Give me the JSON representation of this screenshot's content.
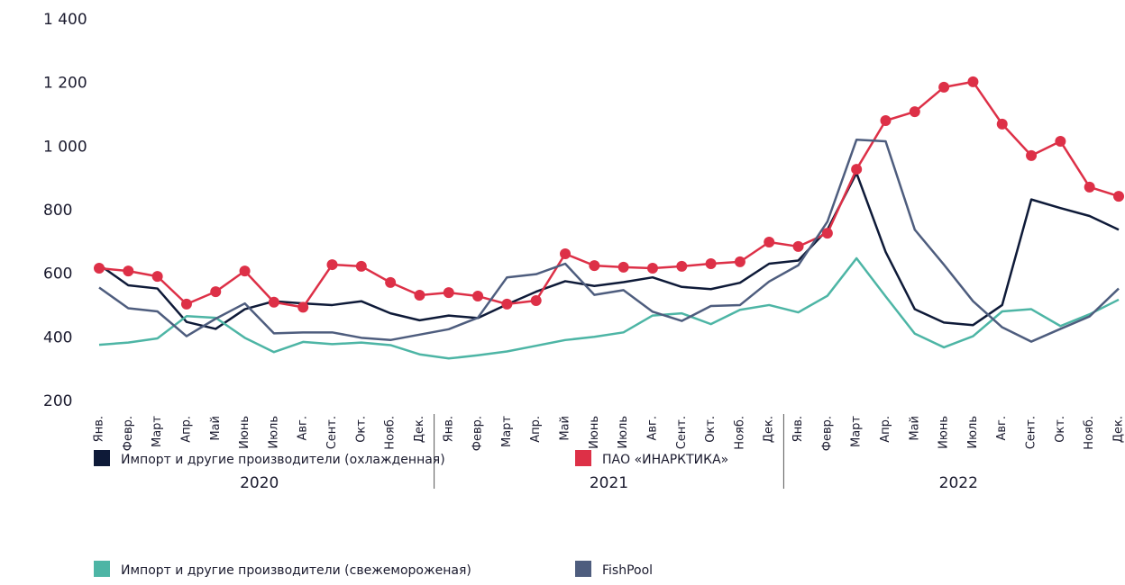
{
  "chart_data": {
    "type": "line",
    "categories": [
      "Янв.",
      "Февр.",
      "Март",
      "Апр.",
      "Май",
      "Июнь",
      "Июль",
      "Авг.",
      "Сент.",
      "Окт.",
      "Нояб.",
      "Дек.",
      "Янв.",
      "Февр.",
      "Март",
      "Апр.",
      "Май",
      "Июнь",
      "Июль",
      "Авг.",
      "Сент.",
      "Окт.",
      "Нояб.",
      "Дек.",
      "Янв.",
      "Февр.",
      "Март",
      "Апр.",
      "Май",
      "Июнь",
      "Июль",
      "Авг.",
      "Сент.",
      "Окт.",
      "Нояб.",
      "Дек."
    ],
    "year_groups": [
      "2020",
      "2021",
      "2022"
    ],
    "ylim": [
      200,
      1400
    ],
    "yticks": [
      200,
      400,
      600,
      800,
      {
        "value": 1000,
        "label": "1 000"
      },
      {
        "value": 1200,
        "label": "1 200"
      },
      {
        "value": 1400,
        "label": "1 400"
      }
    ],
    "grid": false,
    "legend": "bottom",
    "series": [
      {
        "name": "Импорт и другие производители (охлажденная)",
        "color": "#0e1a38",
        "markers": false,
        "values": [
          630,
          565,
          555,
          450,
          428,
          490,
          515,
          508,
          503,
          515,
          477,
          455,
          470,
          462,
          505,
          545,
          578,
          563,
          575,
          590,
          560,
          553,
          573,
          633,
          643,
          740,
          918,
          670,
          490,
          448,
          440,
          503,
          835,
          808,
          783,
          740
        ]
      },
      {
        "name": "ПАО «ИНАРКТИКА»",
        "color": "#dd3047",
        "markers": true,
        "values": [
          619,
          610,
          593,
          506,
          545,
          610,
          512,
          496,
          630,
          625,
          574,
          534,
          542,
          531,
          506,
          517,
          664,
          627,
          622,
          619,
          625,
          633,
          639,
          701,
          687,
          729,
          930,
          1083,
          1111,
          1188,
          1205,
          1072,
          973,
          1018,
          874,
          845
        ]
      },
      {
        "name": "Импорт и другие производители (свежемороженая)",
        "color": "#4db5a5",
        "markers": false,
        "values": [
          378,
          385,
          398,
          468,
          463,
          400,
          355,
          387,
          380,
          385,
          377,
          348,
          335,
          345,
          357,
          375,
          393,
          403,
          417,
          470,
          477,
          443,
          488,
          503,
          480,
          532,
          650,
          530,
          413,
          370,
          405,
          483,
          490,
          437,
          474,
          520
        ]
      },
      {
        "name": "FishPool",
        "color": "#4e5d7e",
        "markers": false,
        "values": [
          558,
          493,
          483,
          405,
          460,
          508,
          414,
          417,
          417,
          400,
          393,
          410,
          427,
          463,
          590,
          600,
          633,
          535,
          550,
          482,
          453,
          500,
          503,
          577,
          628,
          765,
          1023,
          1018,
          740,
          630,
          515,
          433,
          388,
          428,
          467,
          555
        ]
      }
    ]
  }
}
